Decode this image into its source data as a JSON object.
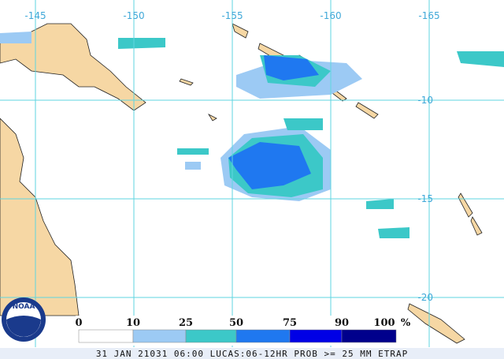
{
  "map": {
    "lon_labels": [
      "-145",
      "-150",
      "-155",
      "-160",
      "-165"
    ],
    "lat_labels": [
      "-10",
      "-15",
      "-20"
    ],
    "legend": {
      "ticks": [
        0,
        10,
        25,
        50,
        75,
        90,
        100
      ],
      "unit": "%",
      "colors": [
        "#ffffff",
        "#9ccaf4",
        "#3cc8c8",
        "#1f78f0",
        "#0000e6",
        "#00008c"
      ]
    },
    "logo": "NOAA",
    "footer": "31 JAN 21031 06:00 LUCAS:06-12HR PROB >= 25 MM ETRAP"
  }
}
